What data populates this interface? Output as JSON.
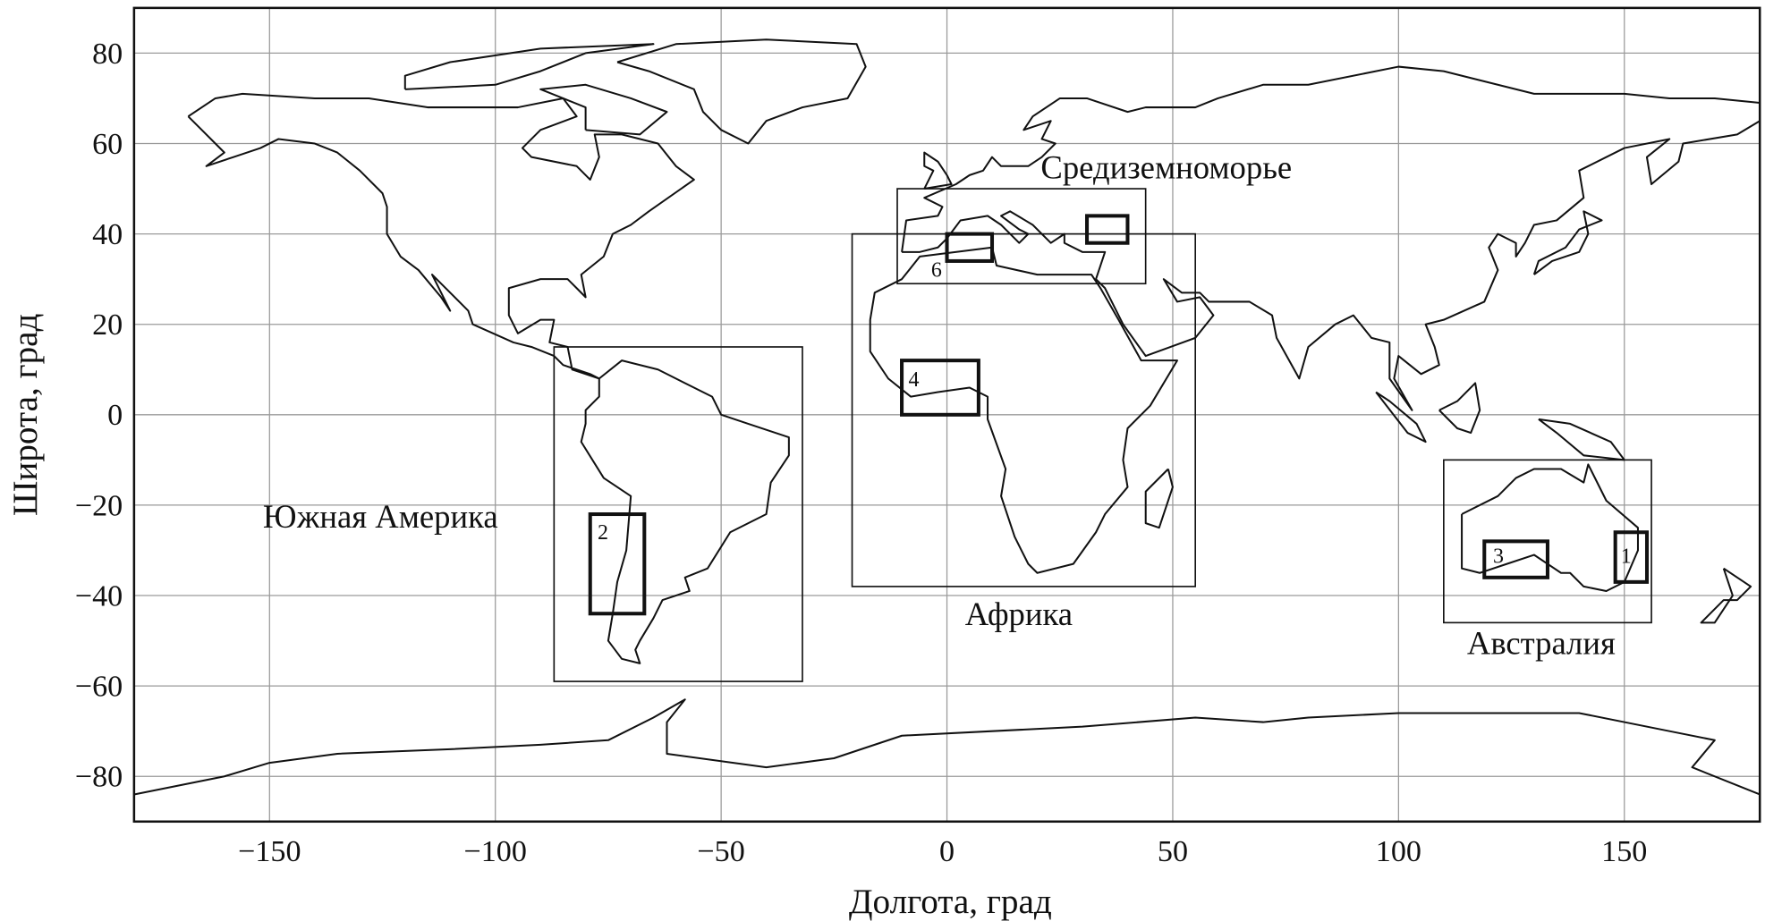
{
  "map": {
    "xlabel": "Долгота, град",
    "ylabel": "Широта, град",
    "xlim": [
      -180,
      180
    ],
    "ylim": [
      -90,
      90
    ],
    "grid": true,
    "xticks": [
      -150,
      -100,
      -50,
      0,
      50,
      100,
      150
    ],
    "xtick_labels": [
      "−150",
      "−100",
      "−50",
      "0",
      "50",
      "100",
      "150"
    ],
    "yticks": [
      80,
      60,
      40,
      20,
      0,
      -20,
      -40,
      -60,
      -80
    ],
    "ytick_labels": [
      "80",
      "60",
      "40",
      "20",
      "0",
      "−20",
      "−40",
      "−60",
      "−80"
    ],
    "large_regions": [
      {
        "label": "Средиземноморье",
        "lon": [
          -11,
          44
        ],
        "lat": [
          29,
          50
        ]
      },
      {
        "label": "Африка",
        "lon": [
          -21,
          55
        ],
        "lat": [
          -38,
          40
        ]
      },
      {
        "label": "Южная Америка",
        "lon": [
          -87,
          -32
        ],
        "lat": [
          -59,
          15
        ]
      },
      {
        "label": "Австралия",
        "lon": [
          110,
          156
        ],
        "lat": [
          -46,
          -10
        ]
      }
    ],
    "small_regions": [
      {
        "label": "1",
        "lon": [
          148,
          155
        ],
        "lat": [
          -37,
          -26
        ]
      },
      {
        "label": "2",
        "lon": [
          -79,
          -67
        ],
        "lat": [
          -44,
          -22
        ]
      },
      {
        "label": "3",
        "lon": [
          119,
          133
        ],
        "lat": [
          -36,
          -28
        ]
      },
      {
        "label": "4",
        "lon": [
          -10,
          7
        ],
        "lat": [
          0,
          12
        ]
      },
      {
        "label": "",
        "lon": [
          31,
          40
        ],
        "lat": [
          38,
          44
        ]
      },
      {
        "label": "6",
        "lon": [
          0,
          10
        ],
        "lat": [
          34,
          40
        ]
      }
    ],
    "colors": {
      "lines": "#111111",
      "grid": "#9a9a9a"
    }
  }
}
